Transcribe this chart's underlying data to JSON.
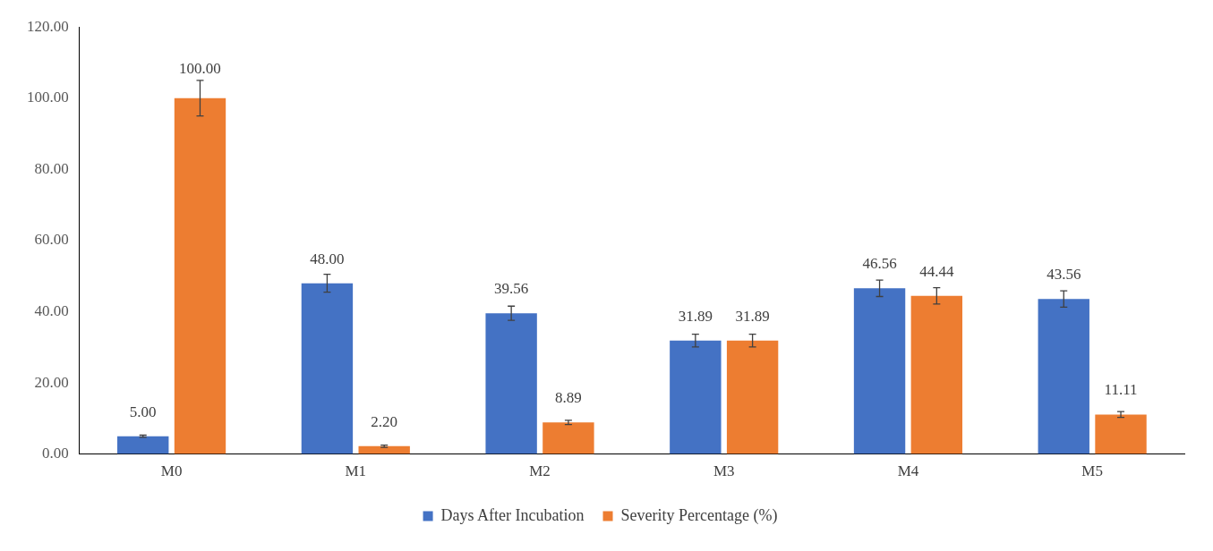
{
  "chart_data": {
    "type": "bar",
    "categories": [
      "M0",
      "M1",
      "M2",
      "M3",
      "M4",
      "M5"
    ],
    "series": [
      {
        "name": "Days After Incubation",
        "color": "#4472c4",
        "values": [
          5,
          48,
          39.56,
          31.89,
          46.56,
          43.56
        ],
        "errors": [
          0.3,
          2.5,
          2,
          1.8,
          2.3,
          2.3
        ],
        "value_labels": [
          "5.00",
          "48.00",
          "39.56",
          "31.89",
          "46.56",
          "43.56"
        ]
      },
      {
        "name": "Severity Percentage (%)",
        "color": "#ed7d31",
        "values": [
          100,
          2.2,
          8.89,
          31.89,
          44.44,
          11.11
        ],
        "errors": [
          5,
          0.3,
          0.6,
          1.8,
          2.3,
          0.8
        ],
        "value_labels": [
          "100.00",
          "2.20",
          "8.89",
          "31.89",
          "44.44",
          "11.11"
        ]
      }
    ],
    "ylim": [
      0,
      120
    ],
    "yticks": [
      {
        "value": 0,
        "label": "0.00"
      },
      {
        "value": 20,
        "label": "20.00"
      },
      {
        "value": 40,
        "label": "40.00"
      },
      {
        "value": 60,
        "label": "60.00"
      },
      {
        "value": 80,
        "label": "80.00"
      },
      {
        "value": 100,
        "label": "100.00"
      },
      {
        "value": 120,
        "label": "120.00"
      }
    ],
    "grid": false,
    "legend": "bottom"
  }
}
